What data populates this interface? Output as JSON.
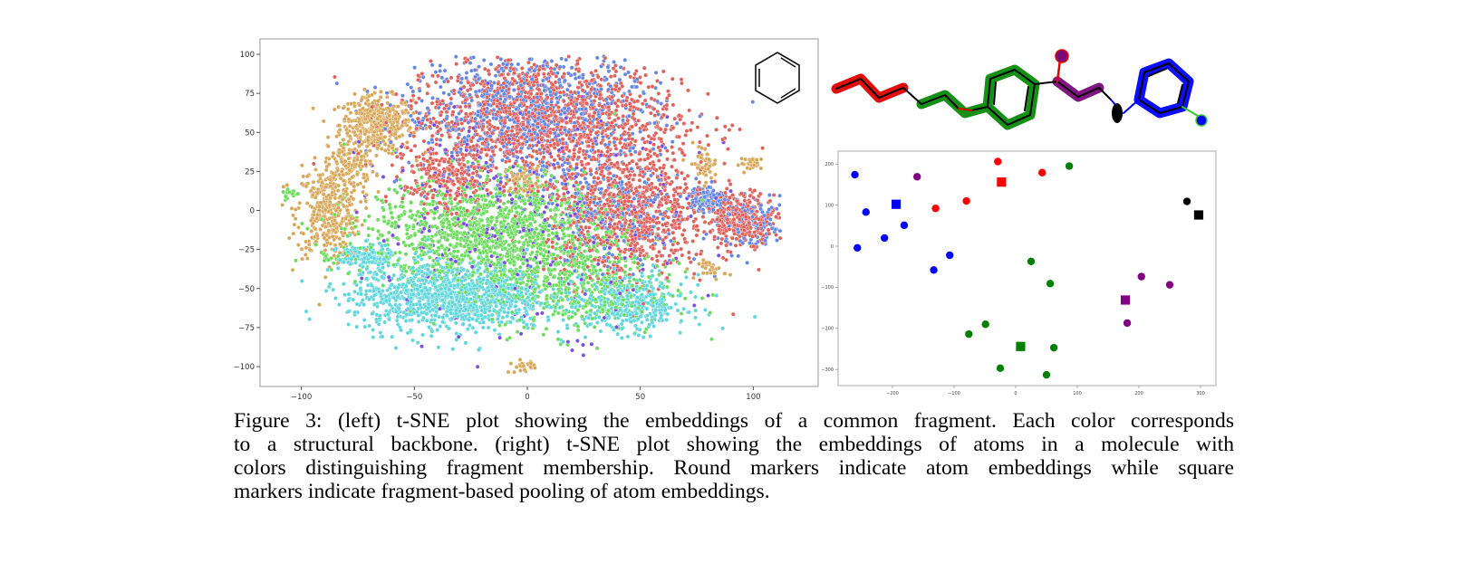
{
  "figure": {
    "caption_lines": [
      "Figure 3: (left) t-SNE plot showing the embeddings of a common fragment. Each color corresponds",
      "to a structural backbone. (right) t-SNE plot showing the embeddings of atoms in a molecule with",
      "colors distinguishing fragment membership. Round markers indicate atom embeddings while square",
      "markers indicate fragment-based pooling of atom embeddings."
    ],
    "inset_icon": "benzene-ring-structure",
    "molecule_icon": "molecule-structure-colored-by-fragment"
  },
  "chart_data": [
    {
      "type": "scatter",
      "title": "",
      "xlabel": "",
      "ylabel": "",
      "xlim": [
        -118,
        118
      ],
      "ylim": [
        -110,
        103
      ],
      "x_ticks": [
        "−100",
        "−50",
        "0",
        "50",
        "100"
      ],
      "x_tick_values": [
        -100,
        -50,
        0,
        50,
        100
      ],
      "y_ticks": [
        "100",
        "75",
        "50",
        "25",
        "0",
        "−25",
        "−50",
        "−75",
        "−100"
      ],
      "y_tick_values": [
        100,
        75,
        50,
        25,
        0,
        -25,
        -50,
        -75,
        -100
      ],
      "grid": false,
      "legend": "none",
      "series_colors": [
        "#e0605a",
        "#6387e3",
        "#6bdc5c",
        "#5fd6dc",
        "#d8a85a",
        "#7a4fe0"
      ],
      "clusters": [
        {
          "color": "#d8a85a",
          "center": [
            -67,
            55
          ],
          "spread": [
            8,
            9
          ],
          "count": 420
        },
        {
          "color": "#d8a85a",
          "center": [
            -88,
            0
          ],
          "spread": [
            7,
            15
          ],
          "count": 380
        },
        {
          "color": "#d8a85a",
          "center": [
            -78,
            30
          ],
          "spread": [
            5,
            8
          ],
          "count": 120
        },
        {
          "color": "#d8a85a",
          "center": [
            -2,
            20
          ],
          "spread": [
            4,
            4
          ],
          "count": 60
        },
        {
          "color": "#d8a85a",
          "center": [
            78,
            30
          ],
          "spread": [
            3,
            6
          ],
          "count": 50
        },
        {
          "color": "#d8a85a",
          "center": [
            100,
            30
          ],
          "spread": [
            3,
            2
          ],
          "count": 30
        },
        {
          "color": "#d8a85a",
          "center": [
            82,
            -38
          ],
          "spread": [
            3,
            3
          ],
          "count": 30
        },
        {
          "color": "#d8a85a",
          "center": [
            -2,
            -100
          ],
          "spread": [
            3,
            2
          ],
          "count": 25
        },
        {
          "color": "#e0605a",
          "center": [
            5,
            60
          ],
          "spread": [
            30,
            20
          ],
          "count": 1300
        },
        {
          "color": "#e0605a",
          "center": [
            45,
            0
          ],
          "spread": [
            18,
            22
          ],
          "count": 900
        },
        {
          "color": "#e0605a",
          "center": [
            -35,
            20
          ],
          "spread": [
            10,
            12
          ],
          "count": 250
        },
        {
          "color": "#e0605a",
          "center": [
            95,
            -5
          ],
          "spread": [
            8,
            8
          ],
          "count": 300
        },
        {
          "color": "#6387e3",
          "center": [
            0,
            62
          ],
          "spread": [
            28,
            22
          ],
          "count": 900
        },
        {
          "color": "#6387e3",
          "center": [
            40,
            -5
          ],
          "spread": [
            18,
            18
          ],
          "count": 250
        },
        {
          "color": "#6387e3",
          "center": [
            80,
            8
          ],
          "spread": [
            4,
            4
          ],
          "count": 120
        },
        {
          "color": "#6387e3",
          "center": [
            100,
            -10
          ],
          "spread": [
            8,
            8
          ],
          "count": 120
        },
        {
          "color": "#6bdc5c",
          "center": [
            -15,
            -15
          ],
          "spread": [
            28,
            18
          ],
          "count": 1400
        },
        {
          "color": "#6bdc5c",
          "center": [
            25,
            -50
          ],
          "spread": [
            20,
            15
          ],
          "count": 400
        },
        {
          "color": "#6bdc5c",
          "center": [
            -105,
            11
          ],
          "spread": [
            2,
            2
          ],
          "count": 25
        },
        {
          "color": "#6bdc5c",
          "center": [
            -87,
            -30
          ],
          "spread": [
            2,
            2
          ],
          "count": 15
        },
        {
          "color": "#5fd6dc",
          "center": [
            -35,
            -55
          ],
          "spread": [
            22,
            11
          ],
          "count": 1100
        },
        {
          "color": "#5fd6dc",
          "center": [
            45,
            -60
          ],
          "spread": [
            13,
            9
          ],
          "count": 400
        },
        {
          "color": "#5fd6dc",
          "center": [
            -72,
            -30
          ],
          "spread": [
            6,
            4
          ],
          "count": 150
        },
        {
          "color": "#7a4fe0",
          "center": [
            0,
            -5
          ],
          "spread": [
            35,
            35
          ],
          "count": 350
        }
      ]
    },
    {
      "type": "scatter",
      "title": "",
      "xlabel": "",
      "ylabel": "",
      "xlim": [
        -290,
        327
      ],
      "ylim": [
        -332,
        230
      ],
      "x_ticks": [
        "−200",
        "−100",
        "0",
        "100",
        "200",
        "300"
      ],
      "x_tick_values": [
        -200,
        -100,
        0,
        100,
        200,
        300
      ],
      "y_ticks": [
        "200",
        "100",
        "0",
        "−100",
        "−200",
        "−300"
      ],
      "y_tick_values": [
        200,
        100,
        0,
        -100,
        -200,
        -300
      ],
      "grid": false,
      "legend": "none",
      "series": [
        {
          "color": "#0000ff",
          "atoms": [
            [
              -261,
              174
            ],
            [
              -243,
              83
            ],
            [
              -257,
              -4
            ],
            [
              -213,
              20
            ],
            [
              -181,
              51
            ],
            [
              -107,
              -22
            ],
            [
              -133,
              -58
            ]
          ],
          "pooled": [
            -194,
            102
          ]
        },
        {
          "color": "#ff0000",
          "atoms": [
            [
              -130,
              92
            ],
            [
              -80,
              110
            ],
            [
              -29,
              206
            ],
            [
              43,
              179
            ]
          ],
          "pooled": [
            -23,
            156
          ]
        },
        {
          "color": "#008000",
          "atoms": [
            [
              87,
              195
            ],
            [
              25,
              -37
            ],
            [
              56,
              -91
            ],
            [
              -49,
              -190
            ],
            [
              -76,
              -214
            ],
            [
              62,
              -247
            ],
            [
              -25,
              -297
            ],
            [
              50,
              -313
            ]
          ],
          "pooled": [
            8,
            -244
          ]
        },
        {
          "color": "#800080",
          "atoms": [
            [
              -160,
              169
            ],
            [
              204,
              -74
            ],
            [
              250,
              -94
            ],
            [
              181,
              -187
            ]
          ],
          "pooled": [
            178,
            -131
          ]
        },
        {
          "color": "#000000",
          "atoms": [
            [
              278,
              109
            ]
          ],
          "pooled": [
            297,
            76
          ]
        }
      ]
    }
  ]
}
